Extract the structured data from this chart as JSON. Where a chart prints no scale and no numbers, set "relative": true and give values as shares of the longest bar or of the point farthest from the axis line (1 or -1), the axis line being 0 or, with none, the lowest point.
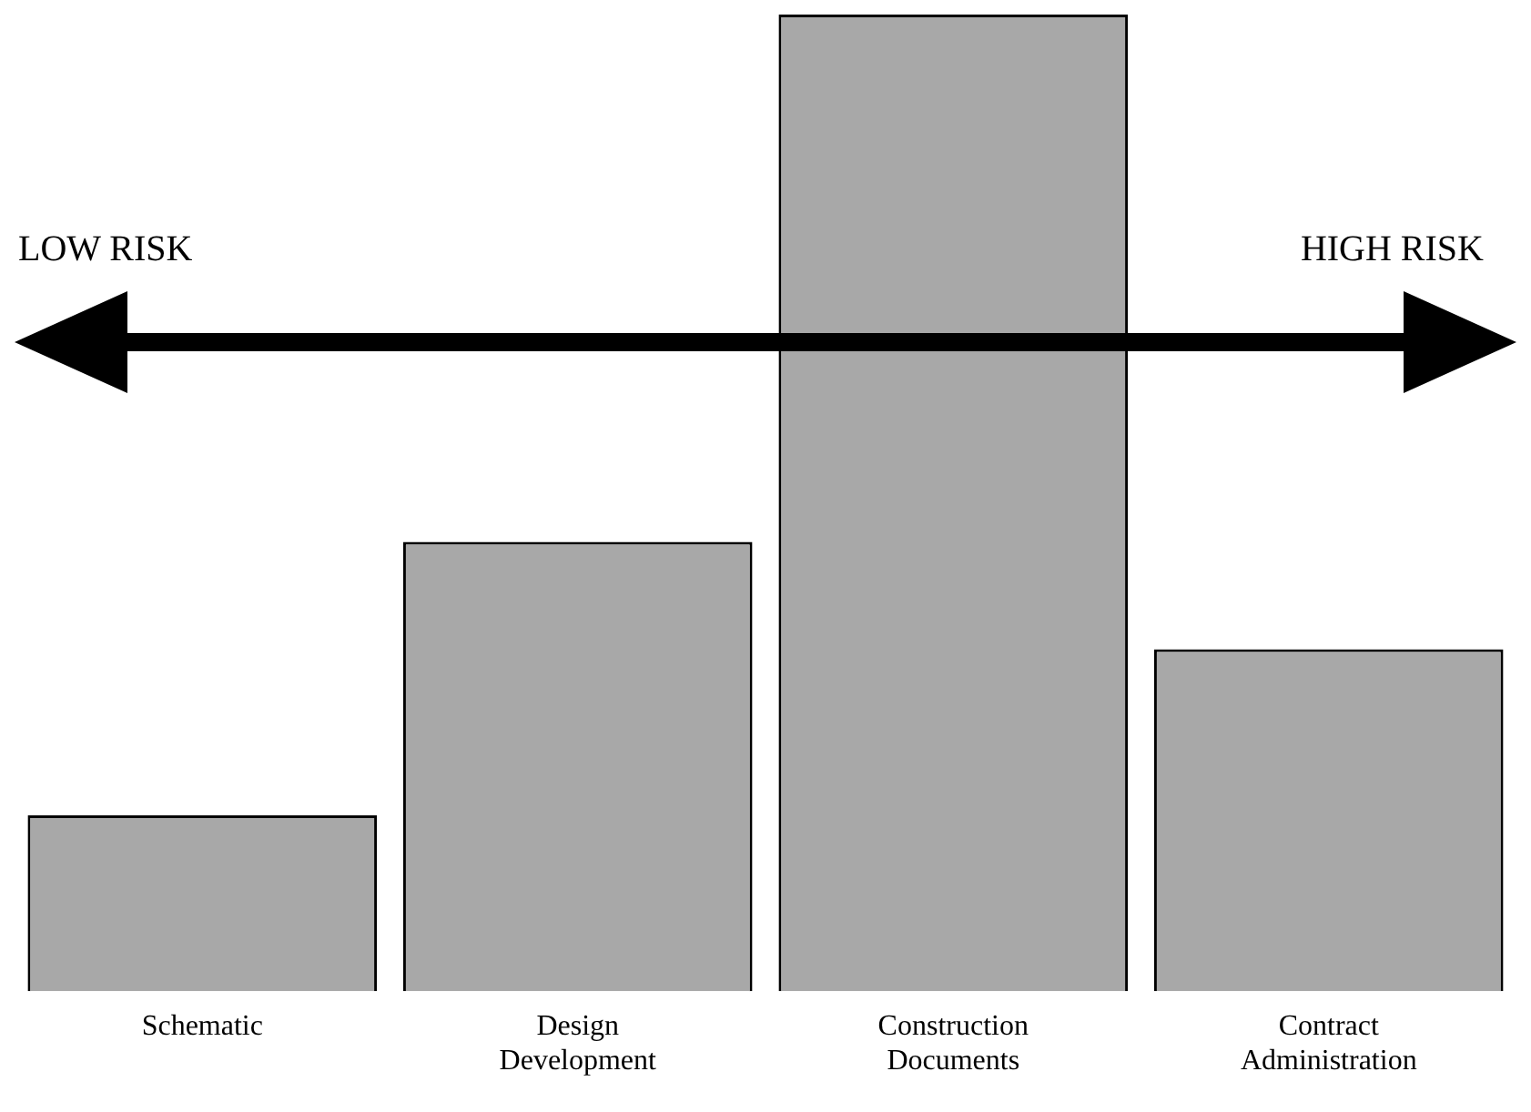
{
  "chart_data": {
    "type": "bar",
    "relative": true,
    "categories": [
      "Schematic",
      "Design Development",
      "Construction Documents",
      "Contract Administration"
    ],
    "values": [
      0.18,
      0.46,
      1,
      0.35
    ],
    "color": "#a8a8a8",
    "annotations": [
      "LOW RISK",
      "HIGH RISK"
    ],
    "grid": false,
    "legend": false
  }
}
